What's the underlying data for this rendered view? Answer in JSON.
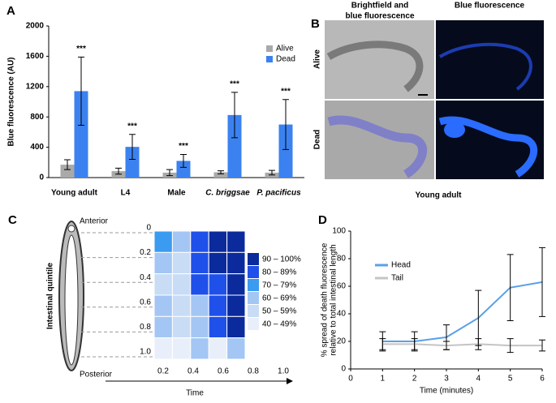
{
  "chart_data": [
    {
      "type": "bar",
      "panel_label": "A",
      "ylabel": "Blue fluorescence (AU)",
      "categories": [
        "Young adult",
        "L4",
        "Male",
        "C. briggsae",
        "P. pacificus"
      ],
      "series": [
        {
          "name": "Alive",
          "color": "#a9a9a9",
          "values": [
            170,
            85,
            65,
            70,
            65
          ],
          "errors": [
            65,
            40,
            40,
            20,
            30
          ]
        },
        {
          "name": "Dead",
          "color": "#3b82f0",
          "values": [
            1140,
            405,
            220,
            825,
            700
          ],
          "errors": [
            450,
            165,
            85,
            300,
            330
          ]
        }
      ],
      "annotations": [
        "***",
        "***",
        "***",
        "***",
        "***"
      ],
      "ylim": [
        0,
        2000
      ],
      "yticks": [
        0,
        400,
        800,
        1200,
        1600,
        2000
      ],
      "legend": "upper right"
    },
    {
      "type": "heatmap",
      "panel_label": "C",
      "ylabel": "Intestinal quintile",
      "xlabel": "Time",
      "top_label": "Anterior",
      "bottom_label": "Posterior",
      "xlim": [
        0.2,
        1
      ],
      "xticks": [
        0.2,
        0.4,
        0.6,
        0.8,
        {
          "value": 1,
          "label": "1.0"
        }
      ],
      "ylim": [
        0,
        1
      ],
      "yticks": [
        0,
        0.2,
        0.4,
        0.6,
        0.8,
        {
          "value": 1,
          "label": "1.0"
        }
      ],
      "values": [
        [
          75,
          65,
          85,
          95,
          95
        ],
        [
          65,
          55,
          85,
          95,
          95
        ],
        [
          55,
          55,
          85,
          85,
          95
        ],
        [
          65,
          55,
          65,
          85,
          95
        ],
        [
          65,
          55,
          65,
          85,
          95
        ],
        [
          45,
          45,
          65,
          45,
          65
        ]
      ],
      "color_bins": [
        {
          "min": 90,
          "max": 100,
          "label": "90 – 100%",
          "color": "#0b2a9c"
        },
        {
          "min": 80,
          "max": 89,
          "label": "80 – 89%",
          "color": "#1f50ea"
        },
        {
          "min": 70,
          "max": 79,
          "label": "70 – 79%",
          "color": "#3a9bf0"
        },
        {
          "min": 60,
          "max": 69,
          "label": "60 – 69%",
          "color": "#a4c6f4"
        },
        {
          "min": 50,
          "max": 59,
          "label": "50 – 59%",
          "color": "#c8dcf6"
        },
        {
          "min": 40,
          "max": 49,
          "label": "40 – 49%",
          "color": "#e9effa"
        }
      ]
    },
    {
      "type": "line",
      "panel_label": "D",
      "xlabel": "Time (minutes)",
      "ylabel": [
        "% spread of death fluorescence",
        "relative to total intestinal length"
      ],
      "x": [
        1,
        2,
        3,
        4,
        5,
        6
      ],
      "series": [
        {
          "name": "Head",
          "color": "#5aa0e6",
          "values": [
            20,
            20,
            23,
            37,
            59,
            63
          ],
          "errors": [
            7,
            7,
            9,
            20,
            24,
            25
          ]
        },
        {
          "name": "Tail",
          "color": "#c4c4c4",
          "values": [
            18,
            18,
            17,
            18,
            17,
            17
          ],
          "errors": [
            4,
            4,
            3,
            4,
            5,
            4
          ]
        }
      ],
      "xlim": [
        0,
        6
      ],
      "ylim": [
        0,
        100
      ],
      "xticks": [
        0,
        1,
        2,
        3,
        4,
        5,
        6
      ],
      "yticks": [
        0,
        20,
        40,
        60,
        80,
        100
      ]
    }
  ],
  "image_panel": {
    "label": "B",
    "column_titles": [
      [
        "Brightfield and",
        "blue fluorescence"
      ],
      [
        "Blue fluorescence"
      ]
    ],
    "row_labels": [
      "Alive",
      "Dead"
    ],
    "caption": "Young adult"
  }
}
